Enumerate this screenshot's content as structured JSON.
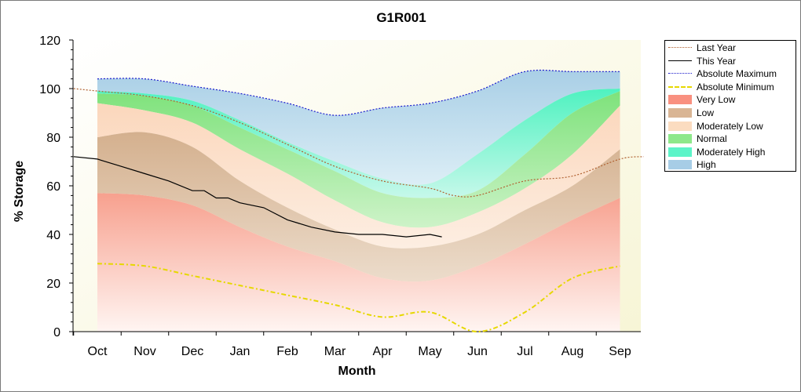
{
  "chart_data": {
    "type": "area",
    "title": "G1R001",
    "xlabel": "Month",
    "ylabel": "% Storage",
    "x_categories": [
      "Oct",
      "Nov",
      "Dec",
      "Jan",
      "Feb",
      "Mar",
      "Apr",
      "May",
      "Jun",
      "Jul",
      "Aug",
      "Sep"
    ],
    "ylim": [
      0,
      120
    ],
    "yticks": [
      0,
      20,
      40,
      60,
      80,
      100,
      120
    ],
    "legend_position": "right",
    "band_months": [
      0,
      1,
      2,
      3,
      4,
      5,
      6,
      7,
      8,
      9,
      10,
      11
    ],
    "bands": {
      "very_low_top": [
        57,
        56,
        52,
        43,
        35,
        29,
        22,
        21,
        27,
        36,
        46,
        55
      ],
      "low_top": [
        80,
        82,
        76,
        62,
        51,
        42,
        35,
        35,
        40,
        50,
        60,
        75
      ],
      "moderately_low_top": [
        94,
        91,
        86,
        75,
        65,
        54,
        45,
        43,
        49,
        59,
        73,
        93
      ],
      "normal_top": [
        98,
        97,
        93,
        84,
        75,
        66,
        57,
        55,
        58,
        73,
        90,
        99
      ],
      "moderately_high_top": [
        99,
        98,
        95,
        87,
        78,
        70,
        63,
        61,
        73,
        87,
        98,
        100
      ],
      "high_top": [
        104,
        104,
        101,
        98,
        94,
        89,
        92,
        94,
        99,
        107,
        107,
        107
      ]
    },
    "series": [
      {
        "name": "Last Year",
        "color": "#b06030",
        "style": "dotted",
        "x": [
          -0.5,
          0,
          1,
          2,
          3,
          4,
          5,
          6,
          7,
          7.5,
          8,
          9,
          10,
          11,
          11.5
        ],
        "values": [
          100,
          99,
          97,
          93,
          86,
          77,
          68,
          62,
          59,
          56,
          56,
          62,
          64,
          71,
          72
        ]
      },
      {
        "name": "This Year",
        "color": "#000000",
        "style": "solid",
        "x": [
          -0.5,
          0,
          0.5,
          1,
          1.5,
          2,
          2.25,
          2.5,
          2.75,
          3,
          3.5,
          4,
          4.5,
          5,
          5.5,
          6,
          6.5,
          7,
          7.25
        ],
        "values": [
          72,
          71,
          68,
          65,
          62,
          58,
          58,
          55,
          55,
          53,
          51,
          46,
          43,
          41,
          40,
          40,
          39,
          40,
          39
        ]
      },
      {
        "name": "Absolute Maximum",
        "color": "#1a1acc",
        "style": "dotted",
        "x": [
          0,
          1,
          2,
          3,
          4,
          5,
          6,
          7,
          8,
          9,
          10,
          11
        ],
        "values": [
          104,
          104,
          101,
          98,
          94,
          89,
          92,
          94,
          99,
          107,
          107,
          107
        ]
      },
      {
        "name": "Absolute Minimum",
        "color": "#e6d800",
        "style": "dashdot",
        "x": [
          0,
          1,
          2,
          3,
          4,
          5,
          6,
          7,
          8,
          9,
          10,
          11
        ],
        "values": [
          28,
          27,
          23,
          19,
          15,
          11,
          6,
          8,
          0,
          8,
          22,
          27
        ]
      }
    ],
    "legend": [
      {
        "label": "Last Year",
        "kind": "line",
        "color": "#b06030",
        "style": "dotted"
      },
      {
        "label": "This Year",
        "kind": "line",
        "color": "#000000",
        "style": "solid"
      },
      {
        "label": "Absolute Maximum",
        "kind": "line",
        "color": "#1a1acc",
        "style": "dotted"
      },
      {
        "label": "Absolute Minimum",
        "kind": "line",
        "color": "#e6d800",
        "style": "dashdot"
      },
      {
        "label": "Very Low",
        "kind": "fill",
        "color": "#f99080"
      },
      {
        "label": "Low",
        "kind": "fill",
        "color": "#d9b594"
      },
      {
        "label": "Moderately Low",
        "kind": "fill",
        "color": "#fbdcc0"
      },
      {
        "label": "Normal",
        "kind": "fill",
        "color": "#8ee88a"
      },
      {
        "label": "Moderately High",
        "kind": "fill",
        "color": "#5cf4c8"
      },
      {
        "label": "High",
        "kind": "fill",
        "color": "#a7cde6"
      }
    ]
  }
}
